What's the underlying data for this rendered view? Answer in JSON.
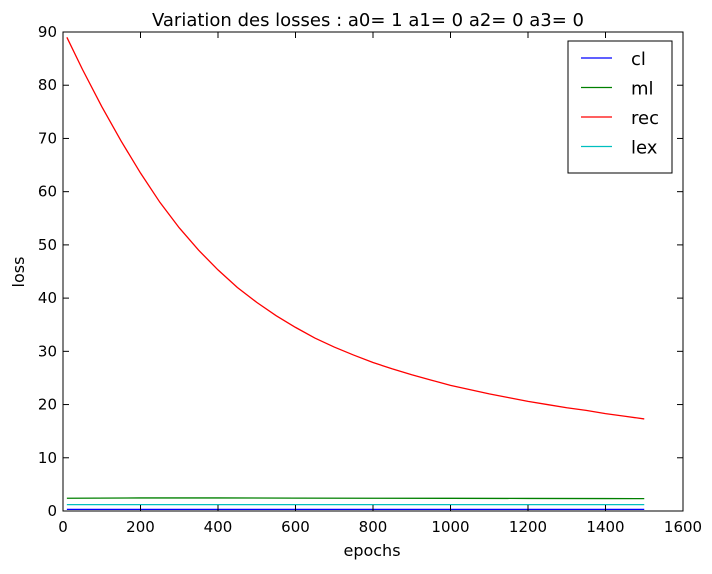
{
  "chart_data": {
    "type": "line",
    "title": "Variation des losses : a0= 1 a1= 0 a2= 0 a3= 0",
    "xlabel": "epochs",
    "ylabel": "loss",
    "xlim": [
      0,
      1600
    ],
    "ylim": [
      0,
      90
    ],
    "xticks": [
      0,
      200,
      400,
      600,
      800,
      1000,
      1200,
      1400,
      1600
    ],
    "yticks": [
      0,
      10,
      20,
      30,
      40,
      50,
      60,
      70,
      80,
      90
    ],
    "grid": false,
    "legend_position": "top-right",
    "series": [
      {
        "name": "cl",
        "color": "#0000ff",
        "x": [
          10,
          1500
        ],
        "y": [
          0.3,
          0.3
        ]
      },
      {
        "name": "ml",
        "color": "#008000",
        "x": [
          10,
          200,
          400,
          600,
          800,
          1000,
          1200,
          1400,
          1500
        ],
        "y": [
          2.4,
          2.45,
          2.45,
          2.42,
          2.4,
          2.38,
          2.36,
          2.34,
          2.33
        ]
      },
      {
        "name": "rec",
        "color": "#ff0000",
        "x": [
          10,
          50,
          100,
          150,
          200,
          250,
          300,
          350,
          400,
          450,
          500,
          550,
          600,
          650,
          700,
          750,
          800,
          850,
          900,
          950,
          1000,
          1050,
          1100,
          1150,
          1200,
          1250,
          1300,
          1350,
          1400,
          1450,
          1500
        ],
        "y": [
          89.0,
          83.0,
          76.0,
          69.5,
          63.5,
          58.0,
          53.2,
          49.0,
          45.3,
          42.0,
          39.2,
          36.7,
          34.5,
          32.5,
          30.8,
          29.3,
          27.9,
          26.7,
          25.6,
          24.6,
          23.6,
          22.8,
          22.0,
          21.3,
          20.6,
          20.0,
          19.4,
          18.9,
          18.3,
          17.8,
          17.3
        ]
      },
      {
        "name": "lex",
        "color": "#00bfbf",
        "x": [
          10,
          1500
        ],
        "y": [
          1.2,
          1.2
        ]
      }
    ]
  }
}
